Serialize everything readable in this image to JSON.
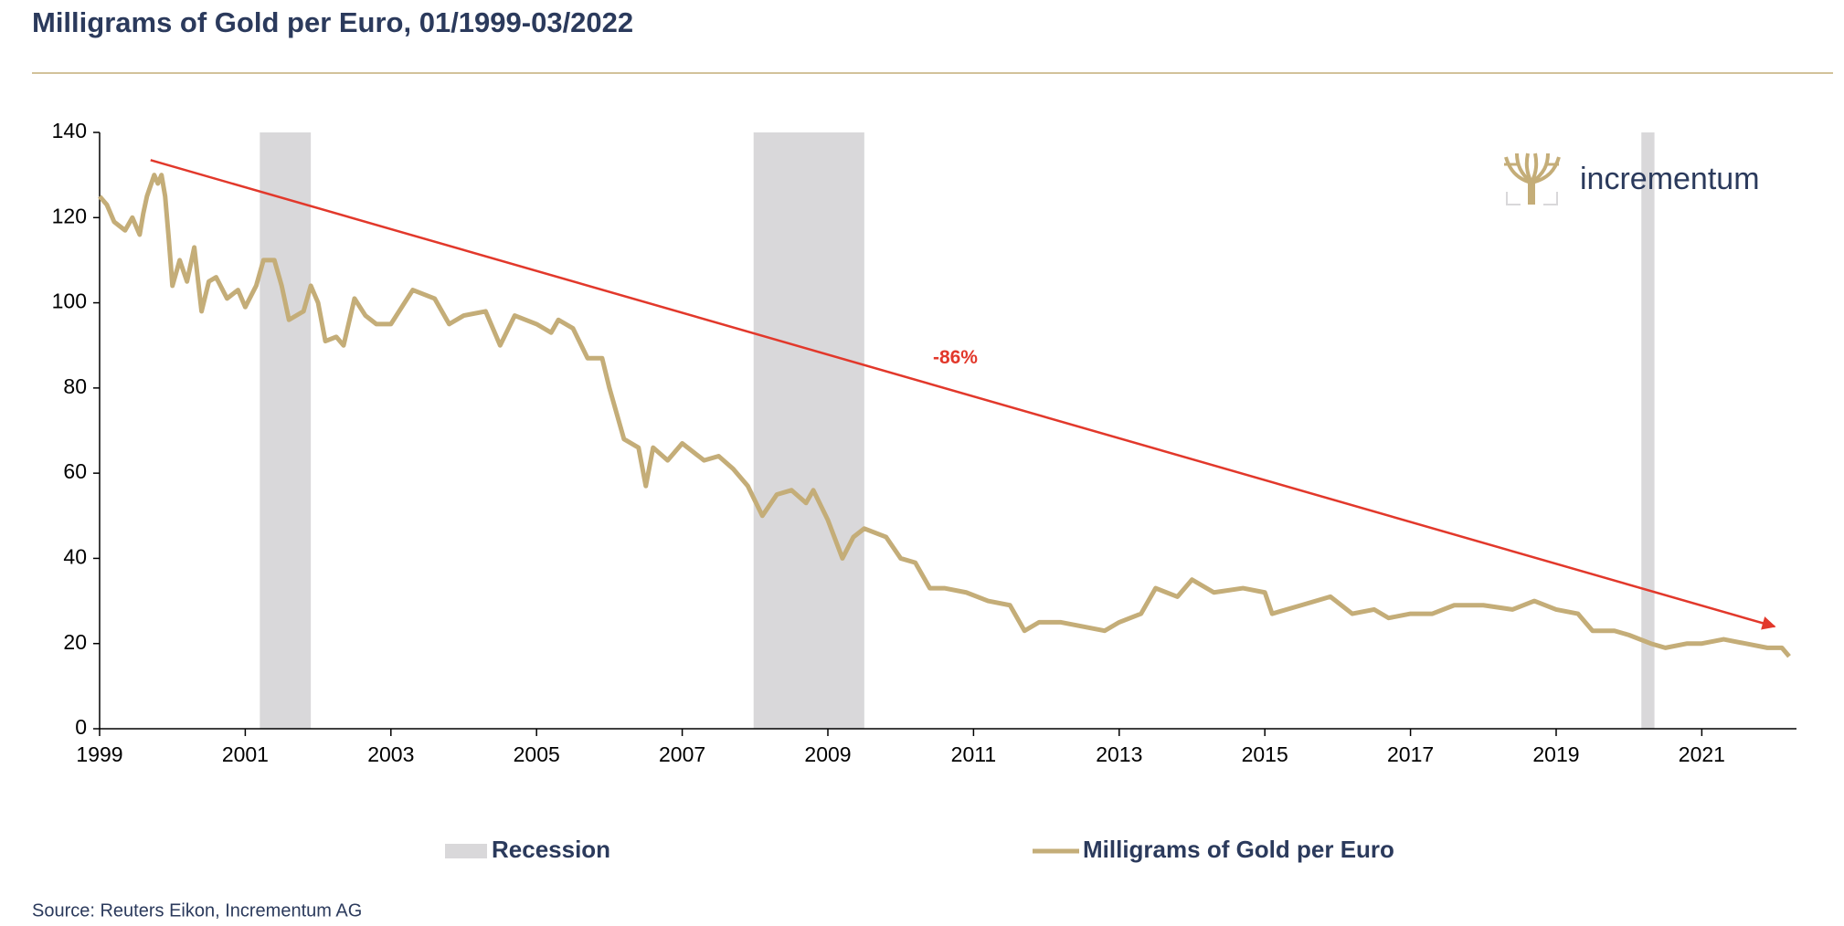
{
  "chart_data": {
    "type": "line",
    "title": "Milligrams of Gold per Euro, 01/1999-03/2022",
    "source": "Source: Reuters Eikon, Incrementum AG",
    "logo": "incrementum",
    "xlim": [
      1999,
      2022.3
    ],
    "xticks": [
      1999,
      2001,
      2003,
      2005,
      2007,
      2009,
      2011,
      2013,
      2015,
      2017,
      2019,
      2021
    ],
    "ylim": [
      0,
      140
    ],
    "yticks": [
      0,
      20,
      40,
      60,
      80,
      100,
      120,
      140
    ],
    "recession_name": "Recession",
    "recession_color": "#d9d8da",
    "recessions": [
      [
        2001.2,
        2001.9
      ],
      [
        2007.98,
        2009.5
      ],
      [
        2020.17,
        2020.35
      ]
    ],
    "series": [
      {
        "name": "Milligrams of Gold per Euro",
        "color": "#c4ad78",
        "x": [
          1999.0,
          1999.1,
          1999.2,
          1999.35,
          1999.45,
          1999.55,
          1999.6,
          1999.65,
          1999.75,
          1999.8,
          1999.85,
          1999.9,
          1999.95,
          2000.0,
          2000.1,
          2000.2,
          2000.3,
          2000.4,
          2000.5,
          2000.6,
          2000.75,
          2000.9,
          2001.0,
          2001.15,
          2001.25,
          2001.4,
          2001.5,
          2001.6,
          2001.8,
          2001.9,
          2002.0,
          2002.1,
          2002.25,
          2002.35,
          2002.5,
          2002.65,
          2002.8,
          2003.0,
          2003.3,
          2003.6,
          2003.8,
          2004.0,
          2004.3,
          2004.5,
          2004.7,
          2005.0,
          2005.2,
          2005.3,
          2005.5,
          2005.7,
          2005.9,
          2006.0,
          2006.2,
          2006.4,
          2006.5,
          2006.6,
          2006.8,
          2007.0,
          2007.3,
          2007.5,
          2007.7,
          2007.9,
          2008.1,
          2008.3,
          2008.5,
          2008.7,
          2008.8,
          2009.0,
          2009.2,
          2009.35,
          2009.5,
          2009.8,
          2010.0,
          2010.2,
          2010.4,
          2010.6,
          2010.9,
          2011.2,
          2011.5,
          2011.7,
          2011.9,
          2012.2,
          2012.5,
          2012.8,
          2013.0,
          2013.3,
          2013.5,
          2013.8,
          2014.0,
          2014.3,
          2014.7,
          2015.0,
          2015.1,
          2015.5,
          2015.9,
          2016.2,
          2016.5,
          2016.7,
          2017.0,
          2017.3,
          2017.6,
          2018.0,
          2018.4,
          2018.7,
          2019.0,
          2019.3,
          2019.5,
          2019.8,
          2020.0,
          2020.3,
          2020.5,
          2020.8,
          2021.0,
          2021.3,
          2021.6,
          2021.9,
          2022.1,
          2022.2
        ],
        "values": [
          125,
          123,
          119,
          117,
          120,
          116,
          121,
          125,
          130,
          128,
          130,
          125,
          115,
          104,
          110,
          105,
          113,
          98,
          105,
          106,
          101,
          103,
          99,
          104,
          110,
          110,
          104,
          96,
          98,
          104,
          100,
          91,
          92,
          90,
          101,
          97,
          95,
          95,
          103,
          101,
          95,
          97,
          98,
          90,
          97,
          95,
          93,
          96,
          94,
          87,
          87,
          80,
          68,
          66,
          57,
          66,
          63,
          67,
          63,
          64,
          61,
          57,
          50,
          55,
          56,
          53,
          56,
          49,
          40,
          45,
          47,
          45,
          40,
          39,
          33,
          33,
          32,
          30,
          29,
          23,
          25,
          25,
          24,
          23,
          25,
          27,
          33,
          31,
          35,
          32,
          33,
          32,
          27,
          29,
          31,
          27,
          28,
          26,
          27,
          27,
          29,
          29,
          28,
          30,
          28,
          27,
          23,
          23,
          22,
          20,
          19,
          20,
          20,
          21,
          20,
          19,
          19,
          17
        ]
      }
    ],
    "trend": {
      "color": "#e2382b",
      "x": [
        1999.7,
        2022.0
      ],
      "values": [
        133.5,
        24
      ]
    },
    "annotation": {
      "text": "-86%",
      "x": 2010.75,
      "y": 87
    }
  }
}
